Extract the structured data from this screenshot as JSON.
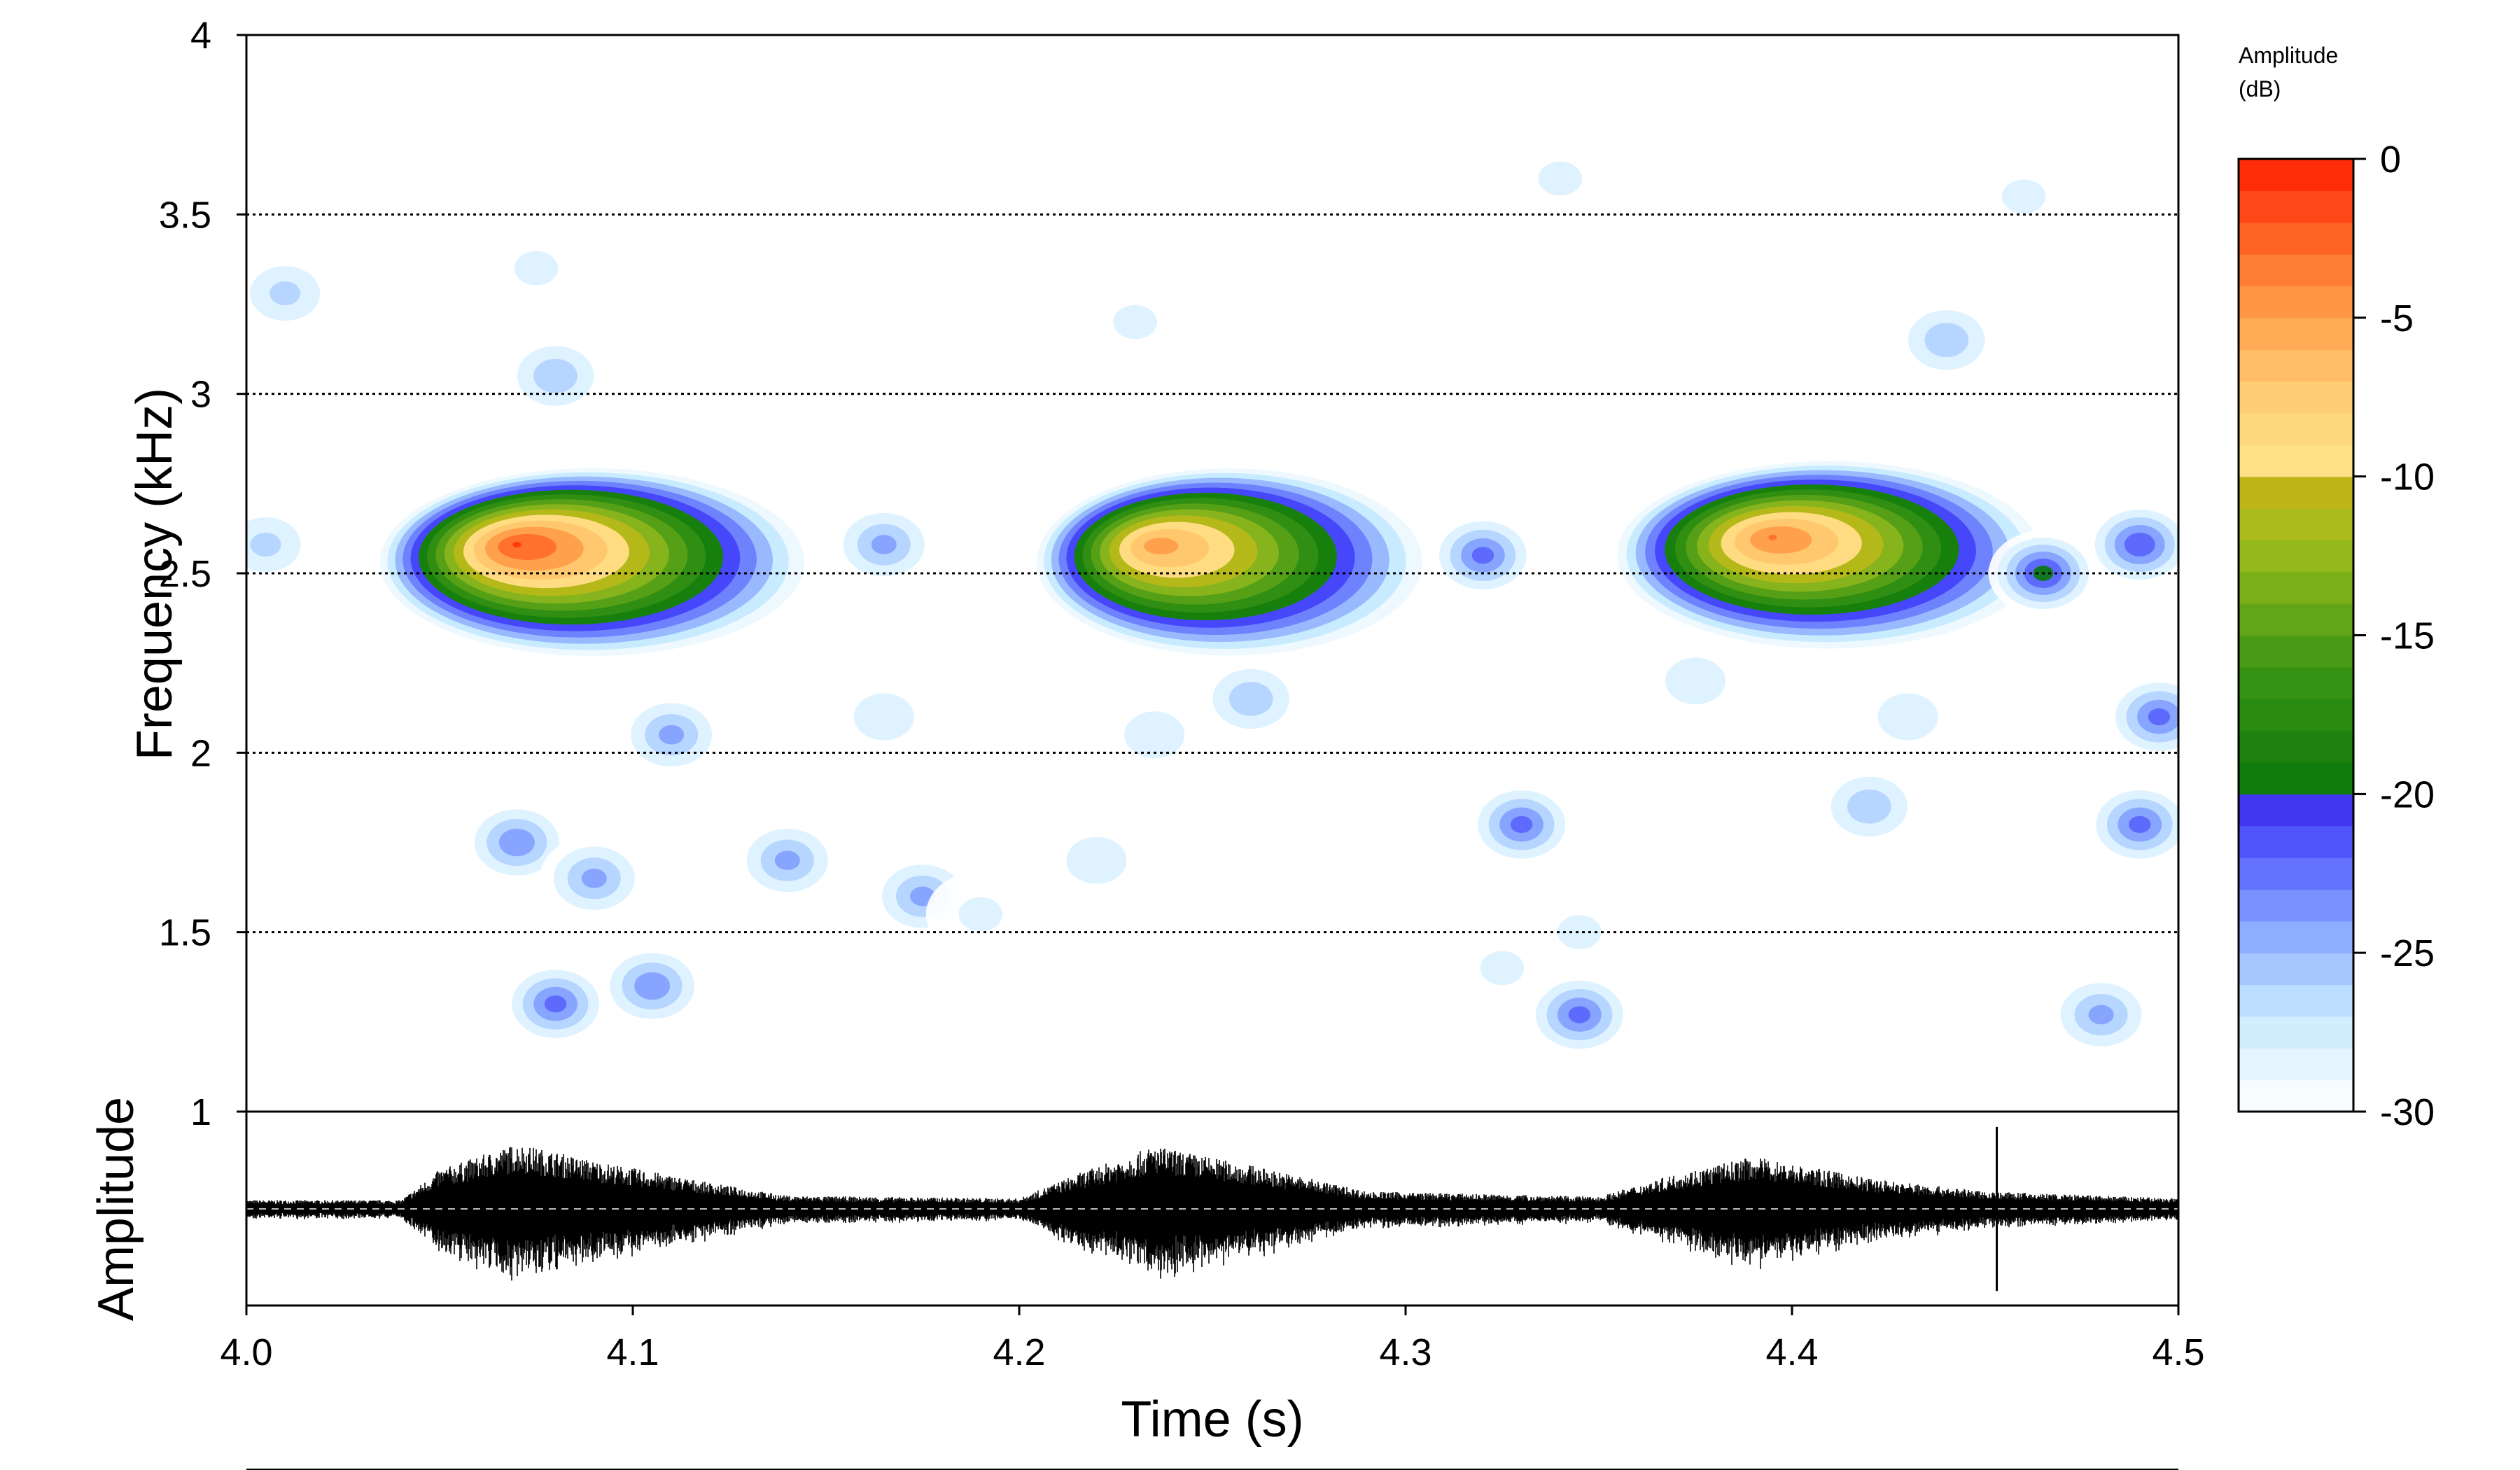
{
  "chart_data": {
    "type": "heatmap",
    "title": "",
    "xlabel": "Time (s)",
    "ylabel": "Frequency (kHz)",
    "lower_panel_label": "Amplitude",
    "xlim": [
      4.0,
      4.5
    ],
    "ylim": [
      1,
      4
    ],
    "x_ticks": [
      "4.0",
      "4.1",
      "4.2",
      "4.3",
      "4.4",
      "4.5"
    ],
    "y_ticks": [
      "1",
      "1.5",
      "2",
      "2.5",
      "3",
      "3.5",
      "4"
    ],
    "y_gridlines": [
      1.5,
      2,
      2.5,
      3,
      3.5
    ],
    "colorbar": {
      "label_line1": "Amplitude",
      "label_line2": "(dB)",
      "range": [
        -30,
        0
      ],
      "ticks": [
        "0",
        "-5",
        "-10",
        "-15",
        "-20",
        "-25",
        "-30"
      ]
    },
    "calls": [
      {
        "start": 4.04,
        "end": 4.14,
        "peak_time": 4.07,
        "peak_freq_khz": 2.58,
        "peak_db": -1,
        "low_khz": 2.3,
        "high_khz": 2.72
      },
      {
        "start": 4.21,
        "end": 4.3,
        "peak_time": 4.235,
        "peak_freq_khz": 2.58,
        "peak_db": -4,
        "low_khz": 2.3,
        "high_khz": 2.72
      },
      {
        "start": 4.36,
        "end": 4.46,
        "peak_time": 4.395,
        "peak_freq_khz": 2.6,
        "peak_db": -3,
        "low_khz": 2.3,
        "high_khz": 2.72
      }
    ],
    "noise_blobs": [
      {
        "t": 4.08,
        "f": 1.3,
        "db": -22
      },
      {
        "t": 4.07,
        "f": 1.75,
        "db": -23
      },
      {
        "t": 4.09,
        "f": 1.65,
        "db": -24
      },
      {
        "t": 4.11,
        "f": 2.05,
        "db": -24
      },
      {
        "t": 4.105,
        "f": 1.35,
        "db": -23
      },
      {
        "t": 4.14,
        "f": 1.7,
        "db": -24
      },
      {
        "t": 4.175,
        "f": 1.6,
        "db": -24
      },
      {
        "t": 4.165,
        "f": 2.1,
        "db": -27
      },
      {
        "t": 4.08,
        "f": 3.05,
        "db": -25
      },
      {
        "t": 4.075,
        "f": 3.35,
        "db": -28
      },
      {
        "t": 4.01,
        "f": 3.28,
        "db": -26
      },
      {
        "t": 4.005,
        "f": 2.58,
        "db": -26
      },
      {
        "t": 4.165,
        "f": 2.58,
        "db": -24
      },
      {
        "t": 4.23,
        "f": 3.2,
        "db": -28
      },
      {
        "t": 4.235,
        "f": 2.05,
        "db": -27
      },
      {
        "t": 4.26,
        "f": 2.15,
        "db": -25
      },
      {
        "t": 4.32,
        "f": 2.55,
        "db": -22
      },
      {
        "t": 4.33,
        "f": 1.8,
        "db": -22
      },
      {
        "t": 4.345,
        "f": 1.27,
        "db": -22
      },
      {
        "t": 4.345,
        "f": 1.5,
        "db": -28
      },
      {
        "t": 4.375,
        "f": 2.2,
        "db": -27
      },
      {
        "t": 4.42,
        "f": 1.85,
        "db": -25
      },
      {
        "t": 4.43,
        "f": 2.1,
        "db": -27
      },
      {
        "t": 4.44,
        "f": 3.15,
        "db": -25
      },
      {
        "t": 4.49,
        "f": 2.58,
        "db": -21
      },
      {
        "t": 4.495,
        "f": 2.1,
        "db": -22
      },
      {
        "t": 4.49,
        "f": 1.8,
        "db": -22
      },
      {
        "t": 4.465,
        "f": 2.5,
        "db": -20
      },
      {
        "t": 4.48,
        "f": 1.27,
        "db": -24
      },
      {
        "t": 4.325,
        "f": 1.4,
        "db": -28
      },
      {
        "t": 4.22,
        "f": 1.7,
        "db": -27
      },
      {
        "t": 4.19,
        "f": 1.55,
        "db": -28
      },
      {
        "t": 4.34,
        "f": 3.6,
        "db": -28
      },
      {
        "t": 4.46,
        "f": 3.55,
        "db": -28
      }
    ],
    "waveform_envelope": [
      {
        "t": 4.0,
        "amp": 0.1
      },
      {
        "t": 4.04,
        "amp": 0.1
      },
      {
        "t": 4.05,
        "amp": 0.45
      },
      {
        "t": 4.07,
        "amp": 0.75
      },
      {
        "t": 4.09,
        "amp": 0.55
      },
      {
        "t": 4.12,
        "amp": 0.3
      },
      {
        "t": 4.14,
        "amp": 0.15
      },
      {
        "t": 4.2,
        "amp": 0.12
      },
      {
        "t": 4.215,
        "amp": 0.4
      },
      {
        "t": 4.235,
        "amp": 0.72
      },
      {
        "t": 4.26,
        "amp": 0.5
      },
      {
        "t": 4.29,
        "amp": 0.2
      },
      {
        "t": 4.35,
        "amp": 0.14
      },
      {
        "t": 4.37,
        "amp": 0.4
      },
      {
        "t": 4.39,
        "amp": 0.6
      },
      {
        "t": 4.42,
        "amp": 0.35
      },
      {
        "t": 4.45,
        "amp": 0.2
      },
      {
        "t": 4.5,
        "amp": 0.12
      }
    ],
    "waveform_spike": {
      "t": 4.453,
      "amp": 0.75
    }
  }
}
